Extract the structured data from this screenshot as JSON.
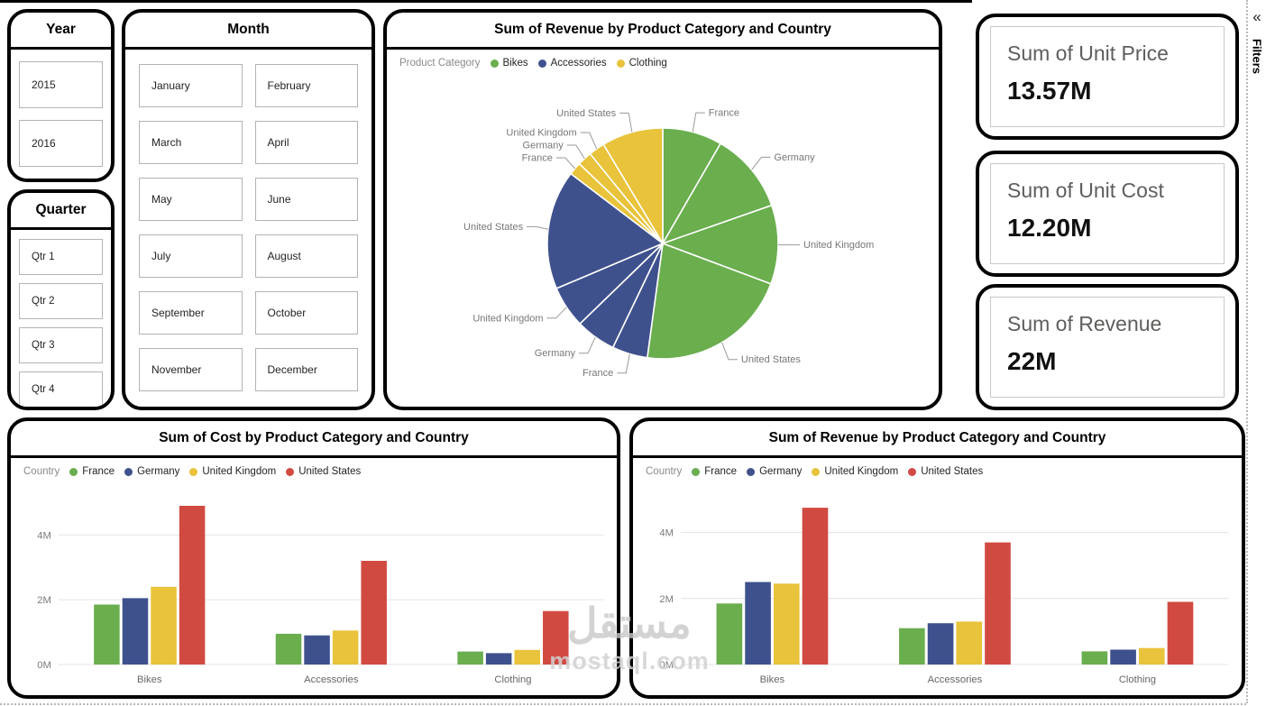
{
  "page": {
    "filters_label": "Filters",
    "collapse_icon": "«",
    "watermark_line1": "مستقل",
    "watermark_line2": "mostaql.com"
  },
  "slicers": {
    "year": {
      "title": "Year",
      "options": [
        "2015",
        "2016"
      ]
    },
    "quarter": {
      "title": "Quarter",
      "options": [
        "Qtr 1",
        "Qtr 2",
        "Qtr 3",
        "Qtr 4"
      ]
    },
    "month": {
      "title": "Month",
      "options": [
        "January",
        "February",
        "March",
        "April",
        "May",
        "June",
        "July",
        "August",
        "September",
        "October",
        "November",
        "December"
      ]
    }
  },
  "kpis": [
    {
      "label": "Sum of Unit Price",
      "value": "13.57M"
    },
    {
      "label": "Sum of Unit Cost",
      "value": "12.20M"
    },
    {
      "label": "Sum of Revenue",
      "value": "22M"
    }
  ],
  "colors": {
    "green": "#6aae4e",
    "blue": "#3f518d",
    "yellow": "#e8c33b",
    "red": "#d14a41"
  },
  "chart_data": [
    {
      "type": "pie",
      "title": "Sum of Revenue by Product Category and Country",
      "legend_title": "Product Category",
      "legend_position": "top",
      "units": "M",
      "legend": [
        {
          "label": "Bikes",
          "color": "#6aae4e"
        },
        {
          "label": "Accessories",
          "color": "#3f518d"
        },
        {
          "label": "Clothing",
          "color": "#e8c33b"
        }
      ],
      "slices": [
        {
          "category": "Bikes",
          "label": "France",
          "value": 1.85,
          "color": "#6aae4e"
        },
        {
          "category": "Bikes",
          "label": "Germany",
          "value": 2.5,
          "color": "#6aae4e"
        },
        {
          "category": "Bikes",
          "label": "United Kingdom",
          "value": 2.45,
          "color": "#6aae4e"
        },
        {
          "category": "Bikes",
          "label": "United States",
          "value": 4.75,
          "color": "#6aae4e"
        },
        {
          "category": "Accessories",
          "label": "France",
          "value": 1.1,
          "color": "#3f518d"
        },
        {
          "category": "Accessories",
          "label": "Germany",
          "value": 1.25,
          "color": "#3f518d"
        },
        {
          "category": "Accessories",
          "label": "United Kingdom",
          "value": 1.3,
          "color": "#3f518d"
        },
        {
          "category": "Accessories",
          "label": "United States",
          "value": 3.7,
          "color": "#3f518d"
        },
        {
          "category": "Clothing",
          "label": "France",
          "value": 0.4,
          "color": "#e8c33b"
        },
        {
          "category": "Clothing",
          "label": "Germany",
          "value": 0.45,
          "color": "#e8c33b"
        },
        {
          "category": "Clothing",
          "label": "United Kingdom",
          "value": 0.5,
          "color": "#e8c33b"
        },
        {
          "category": "Clothing",
          "label": "United States",
          "value": 1.9,
          "color": "#e8c33b"
        }
      ]
    },
    {
      "type": "bar",
      "title": "Sum of Cost by Product Category and Country",
      "legend_title": "Country",
      "legend_position": "top",
      "units": "M",
      "categories": [
        "Bikes",
        "Accessories",
        "Clothing"
      ],
      "series": [
        {
          "name": "France",
          "color": "#6aae4e",
          "values": [
            1.85,
            0.95,
            0.4
          ]
        },
        {
          "name": "Germany",
          "color": "#3f518d",
          "values": [
            2.05,
            0.9,
            0.35
          ]
        },
        {
          "name": "United Kingdom",
          "color": "#e8c33b",
          "values": [
            2.4,
            1.05,
            0.45
          ]
        },
        {
          "name": "United States",
          "color": "#d14a41",
          "values": [
            4.9,
            3.2,
            1.65
          ]
        }
      ],
      "yticks": [
        0,
        2,
        4
      ],
      "ytick_labels": [
        "0M",
        "2M",
        "4M"
      ],
      "ylim": [
        0,
        5.4
      ],
      "grid": true
    },
    {
      "type": "bar",
      "title": "Sum of Revenue by Product Category and Country",
      "legend_title": "Country",
      "legend_position": "top",
      "units": "M",
      "categories": [
        "Bikes",
        "Accessories",
        "Clothing"
      ],
      "series": [
        {
          "name": "France",
          "color": "#6aae4e",
          "values": [
            1.85,
            1.1,
            0.4
          ]
        },
        {
          "name": "Germany",
          "color": "#3f518d",
          "values": [
            2.5,
            1.25,
            0.45
          ]
        },
        {
          "name": "United Kingdom",
          "color": "#e8c33b",
          "values": [
            2.45,
            1.3,
            0.5
          ]
        },
        {
          "name": "United States",
          "color": "#d14a41",
          "values": [
            4.75,
            3.7,
            1.9
          ]
        }
      ],
      "yticks": [
        0,
        2,
        4
      ],
      "ytick_labels": [
        "0M",
        "2M",
        "4M"
      ],
      "ylim": [
        0,
        5.3
      ],
      "grid": true
    }
  ]
}
